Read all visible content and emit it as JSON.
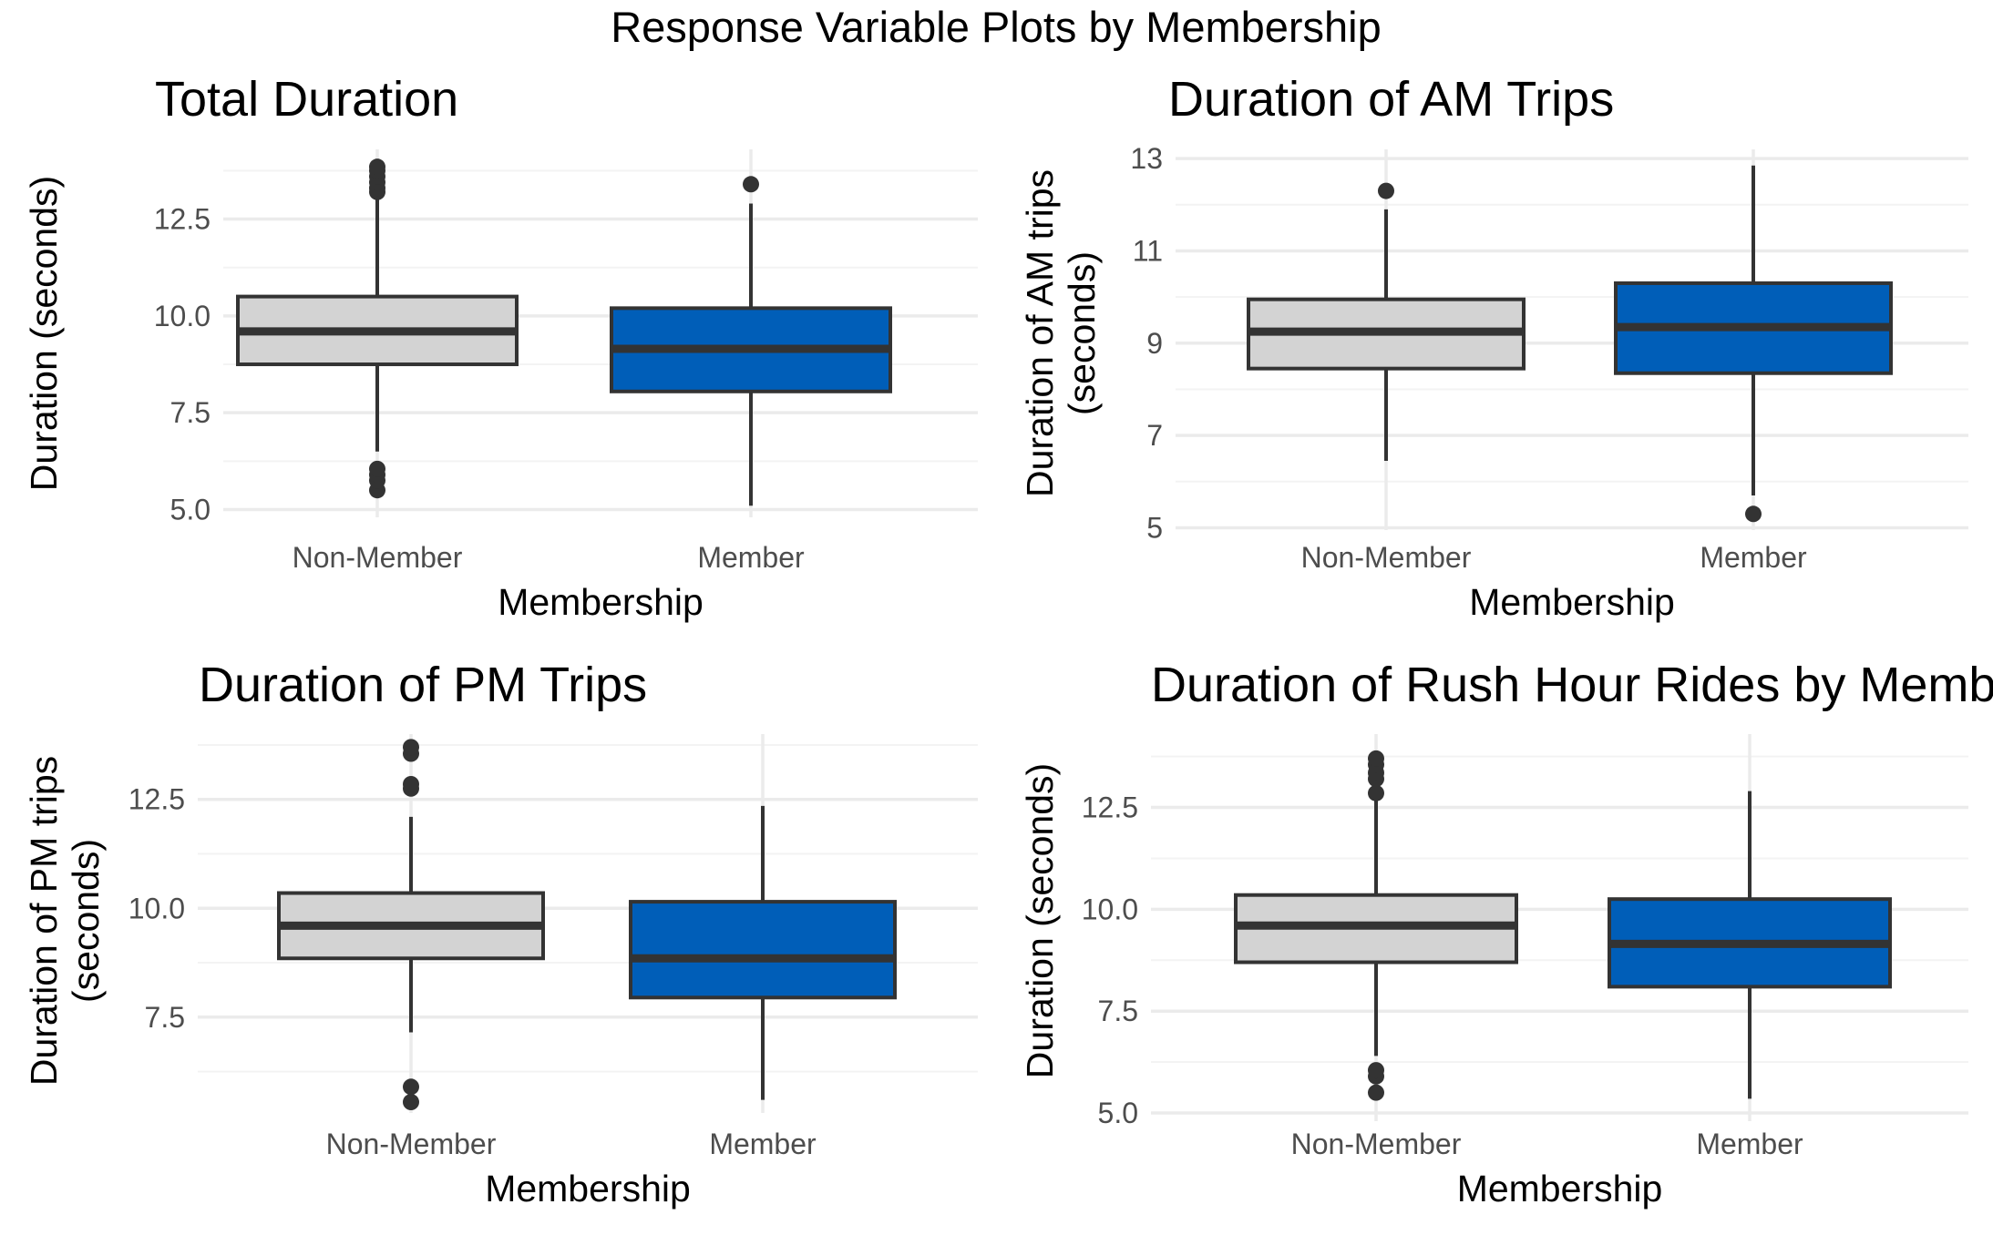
{
  "figure_title": "Response Variable Plots by Membership",
  "colors": {
    "non_member_fill": "#D3D3D3",
    "member_fill": "#005EB8",
    "box_stroke": "#333333",
    "grid_major": "#EBEBEB",
    "grid_minor": "#F3F3F3",
    "tick_label": "#4D4D4D",
    "text": "#000000"
  },
  "chart_data": [
    {
      "type": "boxplot",
      "title": "Total Duration",
      "xlabel": "Membership",
      "ylabel": "Duration (seconds)",
      "categories": [
        "Non-Member",
        "Member"
      ],
      "ylim": [
        4.8,
        14.3
      ],
      "yticks": [
        5.0,
        7.5,
        10.0,
        12.5
      ],
      "ytick_labels": [
        "5.0",
        "7.5",
        "10.0",
        "12.5"
      ],
      "grid": true,
      "boxes": [
        {
          "category": "Non-Member",
          "whisker_low": 6.5,
          "q1": 8.75,
          "median": 9.6,
          "q3": 10.5,
          "whisker_high": 13.1,
          "outliers": [
            5.5,
            5.75,
            5.9,
            6.05,
            13.2,
            13.3,
            13.45,
            13.6,
            13.75,
            13.85
          ]
        },
        {
          "category": "Member",
          "whisker_low": 5.1,
          "q1": 8.05,
          "median": 9.15,
          "q3": 10.2,
          "whisker_high": 12.9,
          "outliers": [
            13.4
          ]
        }
      ]
    },
    {
      "type": "boxplot",
      "title": "Duration of AM Trips",
      "xlabel": "Membership",
      "ylabel": "Duration of AM trips\n(seconds)",
      "categories": [
        "Non-Member",
        "Member"
      ],
      "ylim": [
        4.95,
        13.2
      ],
      "yticks": [
        5,
        7,
        9,
        11,
        13
      ],
      "ytick_labels": [
        "5",
        "7",
        "9",
        "11",
        "13"
      ],
      "grid": true,
      "boxes": [
        {
          "category": "Non-Member",
          "whisker_low": 6.45,
          "q1": 8.45,
          "median": 9.25,
          "q3": 9.95,
          "whisker_high": 11.9,
          "outliers": [
            12.3
          ]
        },
        {
          "category": "Member",
          "whisker_low": 5.7,
          "q1": 8.35,
          "median": 9.35,
          "q3": 10.3,
          "whisker_high": 12.85,
          "outliers": [
            5.3
          ]
        }
      ]
    },
    {
      "type": "boxplot",
      "title": "Duration of PM Trips",
      "xlabel": "Membership",
      "ylabel": "Duration of PM trips\n(seconds)",
      "categories": [
        "Non-Member",
        "Member"
      ],
      "ylim": [
        5.3,
        14.0
      ],
      "yticks": [
        7.5,
        10.0,
        12.5
      ],
      "ytick_labels": [
        "7.5",
        "10.0",
        "12.5"
      ],
      "grid": true,
      "boxes": [
        {
          "category": "Non-Member",
          "whisker_low": 7.15,
          "q1": 8.85,
          "median": 9.6,
          "q3": 10.35,
          "whisker_high": 12.1,
          "outliers": [
            5.55,
            5.9,
            12.75,
            12.85,
            13.55,
            13.7
          ]
        },
        {
          "category": "Member",
          "whisker_low": 5.6,
          "q1": 7.95,
          "median": 8.85,
          "q3": 10.15,
          "whisker_high": 12.35,
          "outliers": []
        }
      ]
    },
    {
      "type": "boxplot",
      "title": "Duration of Rush Hour Rides by Membership",
      "xlabel": "Membership",
      "ylabel": "Duration (seconds)",
      "categories": [
        "Non-Member",
        "Member"
      ],
      "ylim": [
        4.8,
        14.3
      ],
      "yticks": [
        5.0,
        7.5,
        10.0,
        12.5
      ],
      "ytick_labels": [
        "5.0",
        "7.5",
        "10.0",
        "12.5"
      ],
      "grid": true,
      "boxes": [
        {
          "category": "Non-Member",
          "whisker_low": 6.4,
          "q1": 8.7,
          "median": 9.6,
          "q3": 10.35,
          "whisker_high": 12.8,
          "outliers": [
            5.5,
            5.9,
            6.05,
            12.85,
            13.2,
            13.35,
            13.55,
            13.7
          ]
        },
        {
          "category": "Member",
          "whisker_low": 5.35,
          "q1": 8.1,
          "median": 9.15,
          "q3": 10.25,
          "whisker_high": 12.9,
          "outliers": []
        }
      ]
    }
  ]
}
